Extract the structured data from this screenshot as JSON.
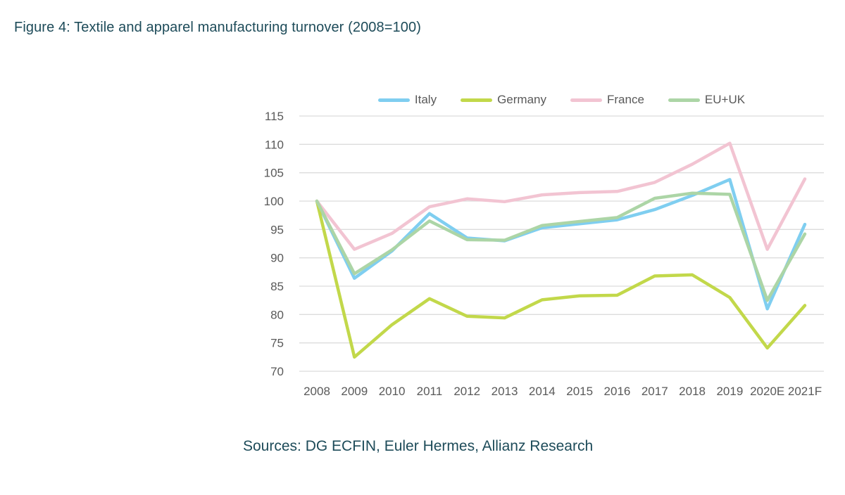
{
  "figure": {
    "title": "Figure 4: Textile and apparel manufacturing turnover (2008=100)",
    "sources": "Sources: DG ECFIN, Euler Hermes, Allianz Research"
  },
  "colors": {
    "title_text": "#1D4B59",
    "axis_text": "#595959",
    "gridline": "#DCDCDC",
    "background": "#FFFFFF"
  },
  "chart_data": {
    "type": "line",
    "title": "Textile and apparel manufacturing turnover (2008=100)",
    "xlabel": "",
    "ylabel": "",
    "grid": true,
    "legend_position": "top-center",
    "ylim": [
      70,
      115
    ],
    "yticks": [
      70,
      75,
      80,
      85,
      90,
      95,
      100,
      105,
      110,
      115
    ],
    "categories": [
      "2008",
      "2009",
      "2010",
      "2011",
      "2012",
      "2013",
      "2014",
      "2015",
      "2016",
      "2017",
      "2018",
      "2019",
      "2020E",
      "2021F"
    ],
    "series": [
      {
        "name": "Italy",
        "color": "#7FCEF0",
        "values": [
          100,
          86.4,
          91.2,
          97.8,
          93.5,
          93.0,
          95.3,
          96.0,
          96.7,
          98.5,
          101.0,
          103.8,
          81.0,
          95.9
        ]
      },
      {
        "name": "Germany",
        "color": "#C2D84A",
        "values": [
          100,
          72.5,
          78.2,
          82.8,
          79.7,
          79.4,
          82.6,
          83.3,
          83.4,
          86.8,
          87.0,
          83.0,
          74.1,
          81.6
        ]
      },
      {
        "name": "France",
        "color": "#F2C4D2",
        "values": [
          100,
          91.5,
          94.3,
          99.0,
          100.4,
          99.9,
          101.1,
          101.5,
          101.7,
          103.3,
          106.5,
          110.2,
          91.5,
          103.9
        ]
      },
      {
        "name": "EU+UK",
        "color": "#ACD5A6",
        "values": [
          100,
          87.2,
          91.4,
          96.5,
          93.2,
          93.1,
          95.7,
          96.4,
          97.1,
          100.5,
          101.4,
          101.2,
          82.5,
          94.2
        ]
      }
    ]
  }
}
